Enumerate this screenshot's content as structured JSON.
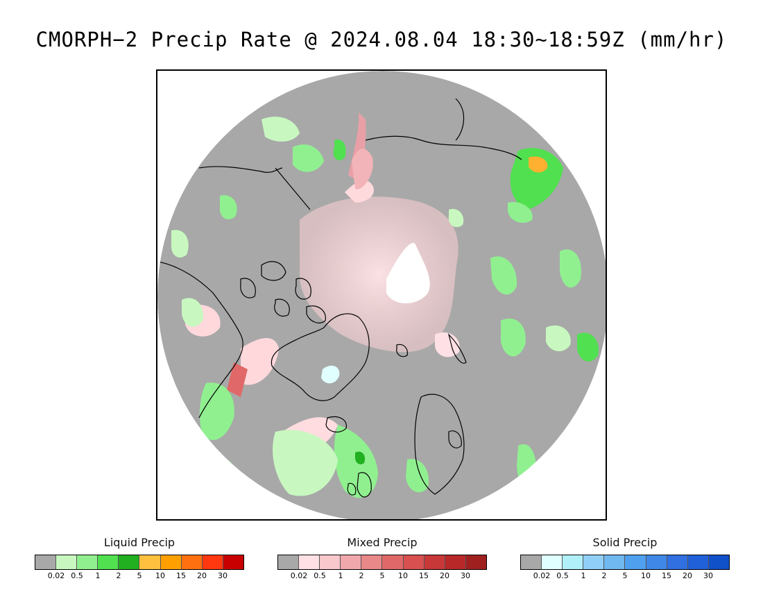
{
  "title": "CMORPH−2 Precip Rate @ 2024.08.04 18:30∼18:59Z (mm/hr)",
  "map": {
    "projection": "polar stereographic (north)",
    "background_color": "#a8a8a8",
    "outside_color": "#ffffff"
  },
  "legends": [
    {
      "name": "Liquid Precip",
      "colors": [
        "#a8a8a8",
        "#c8f8c0",
        "#90f090",
        "#50e050",
        "#20b020",
        "#ffc040",
        "#ffa000",
        "#ff7010",
        "#ff3810",
        "#c80000"
      ],
      "ticks": [
        "0.02",
        "0.5",
        "1",
        "2",
        "5",
        "10",
        "15",
        "20",
        "30"
      ]
    },
    {
      "name": "Mixed Precip",
      "colors": [
        "#a8a8a8",
        "#ffe0e4",
        "#f8c8cc",
        "#f0a8ac",
        "#e88888",
        "#e06868",
        "#d85050",
        "#c83838",
        "#b82828",
        "#a02020"
      ],
      "ticks": [
        "0.02",
        "0.5",
        "1",
        "2",
        "5",
        "10",
        "15",
        "20",
        "30"
      ]
    },
    {
      "name": "Solid Precip",
      "colors": [
        "#a8a8a8",
        "#e0ffff",
        "#b0f0f8",
        "#90d0f8",
        "#70b8f0",
        "#50a0f0",
        "#4088e8",
        "#3070e0",
        "#2060d8",
        "#1050c8"
      ],
      "ticks": [
        "0.02",
        "0.5",
        "1",
        "2",
        "5",
        "10",
        "15",
        "20",
        "30"
      ]
    }
  ]
}
